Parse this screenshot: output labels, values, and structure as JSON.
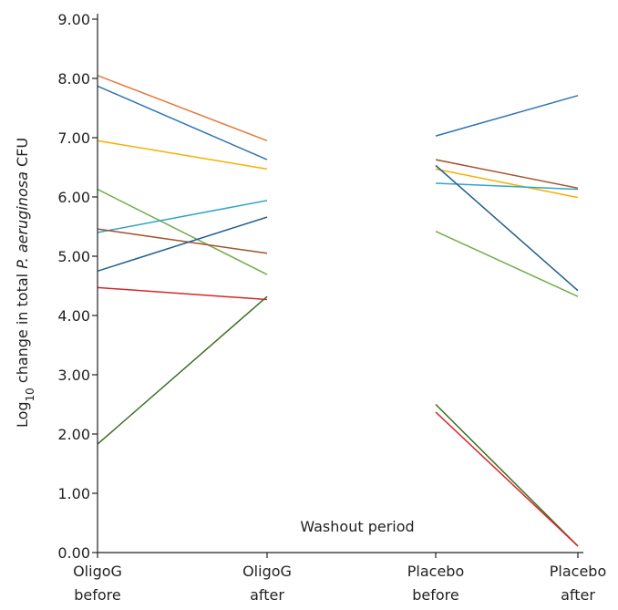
{
  "chart_data": {
    "type": "line",
    "ylabel": {
      "prefix": "Log",
      "subscript": "10",
      "middle": " change in total ",
      "italic": "P. aeruginosa",
      "suffix": " CFU"
    },
    "ylim": [
      0,
      9
    ],
    "yticks": [
      "0.00",
      "1.00",
      "2.00",
      "3.00",
      "4.00",
      "5.00",
      "6.00",
      "7.00",
      "8.00",
      "9.00"
    ],
    "categories": [
      {
        "line1": "OligoG",
        "line2": "before"
      },
      {
        "line1": "OligoG",
        "line2": "after"
      },
      {
        "line1": "Placebo",
        "line2": "before"
      },
      {
        "line1": "Placebo",
        "line2": "after"
      }
    ],
    "annotation": "Washout period",
    "grid": false,
    "segments": [
      {
        "group": "OligoG",
        "color": "#E07B39",
        "values": [
          8.05,
          6.95
        ]
      },
      {
        "group": "OligoG",
        "color": "#2E75B6",
        "values": [
          7.87,
          6.63
        ]
      },
      {
        "group": "OligoG",
        "color": "#F5B000",
        "values": [
          6.95,
          6.47
        ]
      },
      {
        "group": "OligoG",
        "color": "#70AD47",
        "values": [
          6.13,
          4.69
        ]
      },
      {
        "group": "OligoG",
        "color": "#2FA6C8",
        "values": [
          5.4,
          5.94
        ]
      },
      {
        "group": "OligoG",
        "color": "#A0522D",
        "values": [
          5.46,
          5.05
        ]
      },
      {
        "group": "OligoG",
        "color": "#1F5E8C",
        "values": [
          4.75,
          5.66
        ]
      },
      {
        "group": "OligoG",
        "color": "#D62728",
        "values": [
          4.47,
          4.27
        ]
      },
      {
        "group": "OligoG",
        "color": "#3B6E22",
        "values": [
          1.83,
          4.32
        ]
      },
      {
        "group": "Placebo",
        "color": "#2E75B6",
        "values": [
          7.03,
          7.71
        ]
      },
      {
        "group": "Placebo",
        "color": "#A0522D",
        "values": [
          6.63,
          6.15
        ]
      },
      {
        "group": "Placebo",
        "color": "#F5B000",
        "values": [
          6.47,
          5.99
        ]
      },
      {
        "group": "Placebo",
        "color": "#2FA6C8",
        "values": [
          6.23,
          6.13
        ]
      },
      {
        "group": "Placebo",
        "color": "#1F5E8C",
        "values": [
          6.53,
          4.42
        ]
      },
      {
        "group": "Placebo",
        "color": "#70AD47",
        "values": [
          5.42,
          4.32
        ]
      },
      {
        "group": "Placebo",
        "color": "#3B6E22",
        "values": [
          2.5,
          0.11
        ]
      },
      {
        "group": "Placebo",
        "color": "#D62728",
        "values": [
          2.37,
          0.11
        ]
      }
    ]
  }
}
